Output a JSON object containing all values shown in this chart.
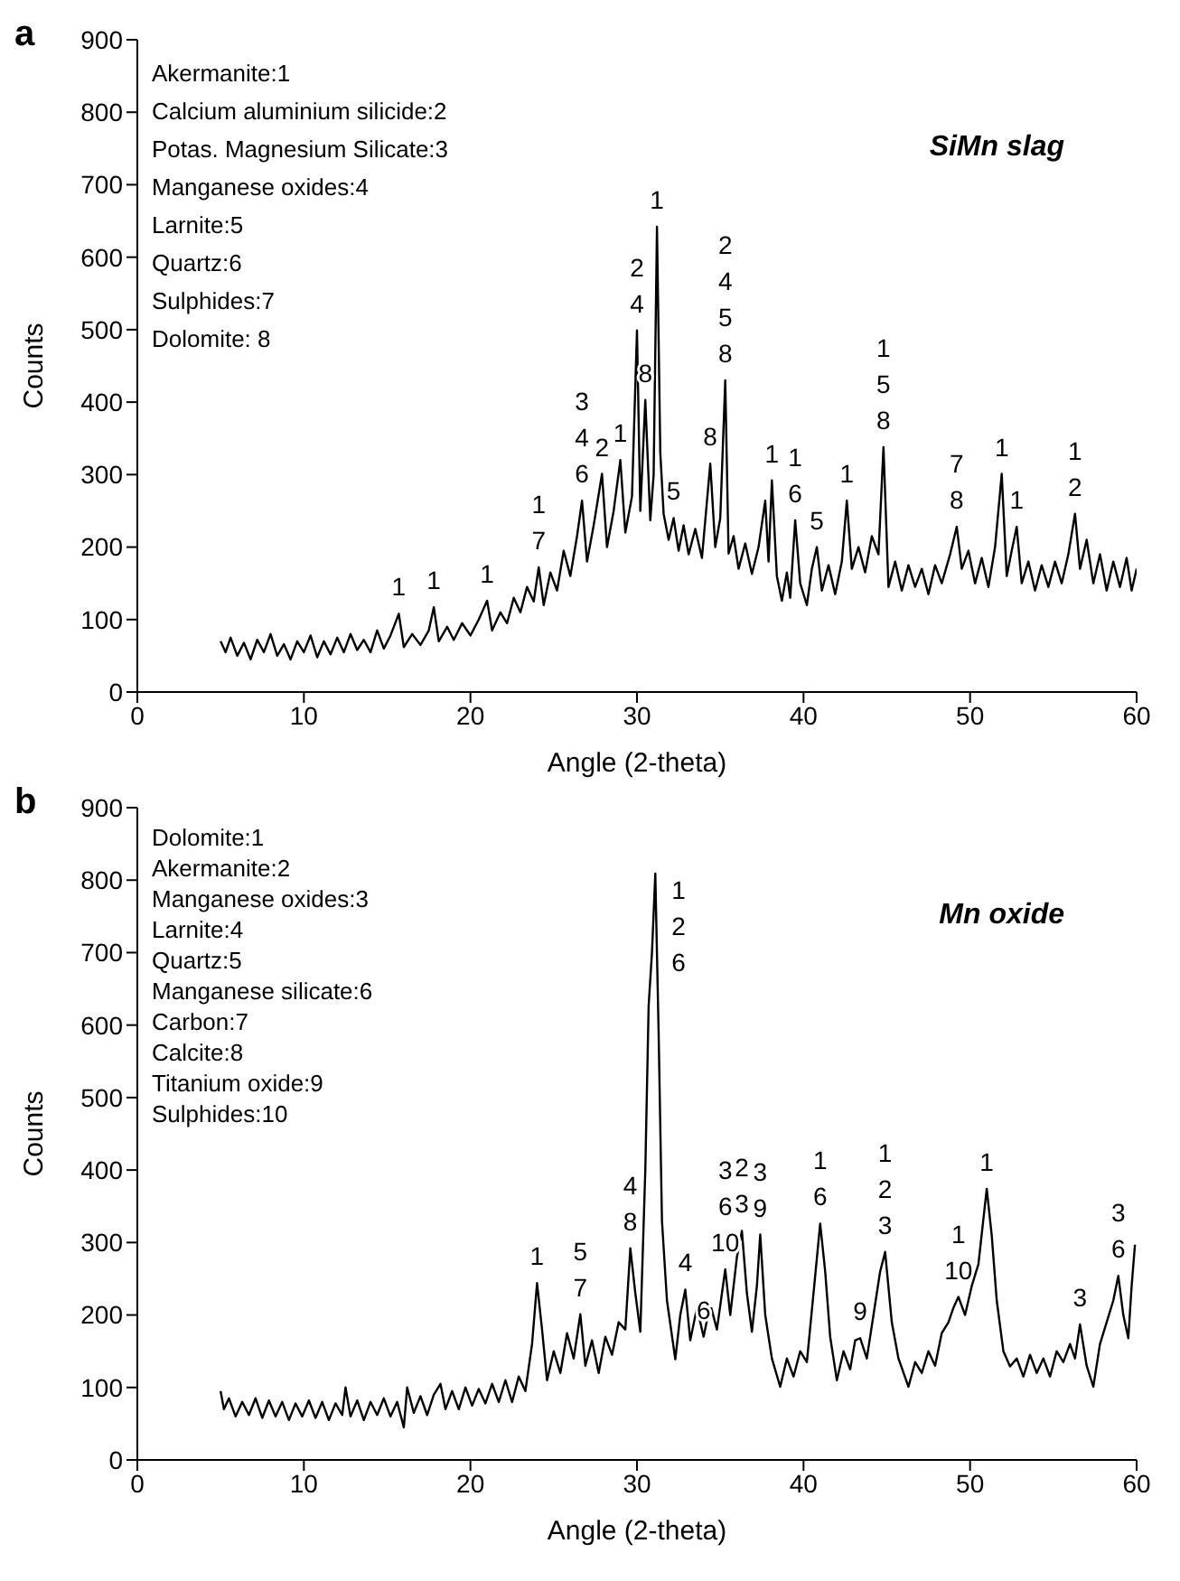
{
  "chart_data": [
    {
      "type": "line",
      "title": "a",
      "subtitle": "SiMn slag",
      "xlabel": "Angle (2-theta)",
      "ylabel": "Counts",
      "xlim": [
        0,
        60
      ],
      "xticks": [
        0,
        10,
        20,
        30,
        40,
        50,
        60
      ],
      "ylim": [
        0,
        900
      ],
      "yticks": [
        0,
        100,
        200,
        300,
        400,
        500,
        600,
        700,
        800,
        900
      ],
      "annotations": [
        "Akermanite:1",
        "Calcium aluminium silicide:2",
        "Potas. Magnesium Silicate:3",
        "Manganese oxides:4",
        "Larnite:5",
        "Quartz:6",
        "Sulphides:7",
        "Dolomite: 8",
        {
          "text": "1",
          "x": 15.7,
          "y": 108
        },
        {
          "text": "1",
          "x": 17.8,
          "y": 117
        },
        {
          "text": "1",
          "x": 21,
          "y": 126
        },
        {
          "text": "1\n7",
          "x": 24.1,
          "y": 172
        },
        {
          "text": "3\n4\n6",
          "x": 26.7,
          "y": 264
        },
        {
          "text": "2",
          "x": 27.9,
          "y": 301
        },
        {
          "text": "1",
          "x": 29,
          "y": 320
        },
        {
          "text": "2\n4",
          "x": 30,
          "y": 499
        },
        {
          "text": "8",
          "x": 30.5,
          "y": 403
        },
        {
          "text": "1",
          "x": 31.2,
          "y": 642
        },
        {
          "text": "5",
          "x": 32.2,
          "y": 240
        },
        {
          "text": "8",
          "x": 34.4,
          "y": 315
        },
        {
          "text": "2\n4\n5\n8",
          "x": 35.3,
          "y": 430
        },
        {
          "text": "1",
          "x": 38.1,
          "y": 292
        },
        {
          "text": "1\n6",
          "x": 39.5,
          "y": 237
        },
        {
          "text": "5",
          "x": 40.8,
          "y": 200
        },
        {
          "text": "1",
          "x": 42.6,
          "y": 264
        },
        {
          "text": "1\n5\n8",
          "x": 44.8,
          "y": 338
        },
        {
          "text": "7\n8",
          "x": 49.2,
          "y": 228
        },
        {
          "text": "1",
          "x": 51.9,
          "y": 301
        },
        {
          "text": "1",
          "x": 52.8,
          "y": 228
        },
        {
          "text": "1\n2",
          "x": 56.3,
          "y": 246
        }
      ],
      "series": [
        {
          "color": "#000000",
          "x": [
            5,
            5.3,
            5.6,
            6,
            6.4,
            6.8,
            7.2,
            7.6,
            8,
            8.4,
            8.8,
            9.2,
            9.6,
            10,
            10.4,
            10.8,
            11.2,
            11.6,
            12,
            12.4,
            12.8,
            13.2,
            13.6,
            14,
            14.4,
            14.8,
            15.2,
            15.7,
            16,
            16.5,
            17,
            17.5,
            17.8,
            18.1,
            18.6,
            19,
            19.5,
            20,
            20.5,
            21,
            21.3,
            21.8,
            22.2,
            22.6,
            23,
            23.4,
            23.8,
            24.1,
            24.4,
            24.8,
            25.2,
            25.6,
            26,
            26.4,
            26.7,
            27,
            27.4,
            27.9,
            28.2,
            28.6,
            29,
            29.3,
            29.7,
            30,
            30.2,
            30.5,
            30.8,
            31,
            31.2,
            31.4,
            31.6,
            31.9,
            32.2,
            32.5,
            32.8,
            33.1,
            33.5,
            33.9,
            34.4,
            34.7,
            35,
            35.3,
            35.5,
            35.8,
            36.1,
            36.5,
            36.9,
            37.3,
            37.7,
            37.9,
            38.1,
            38.4,
            38.7,
            39,
            39.2,
            39.5,
            39.8,
            40.2,
            40.5,
            40.8,
            41.1,
            41.5,
            41.9,
            42.3,
            42.6,
            42.9,
            43.3,
            43.7,
            44.1,
            44.5,
            44.8,
            45.1,
            45.5,
            45.9,
            46.3,
            46.7,
            47.1,
            47.5,
            47.9,
            48.3,
            48.8,
            49.2,
            49.5,
            49.9,
            50.3,
            50.7,
            51.1,
            51.5,
            51.9,
            52.2,
            52.5,
            52.8,
            53.1,
            53.5,
            53.9,
            54.3,
            54.7,
            55.1,
            55.5,
            55.9,
            56.3,
            56.6,
            57,
            57.4,
            57.8,
            58.2,
            58.6,
            59,
            59.4,
            59.7,
            60
          ],
          "values": [
            70,
            55,
            75,
            50,
            68,
            45,
            72,
            55,
            80,
            50,
            66,
            45,
            70,
            55,
            78,
            48,
            70,
            52,
            75,
            55,
            80,
            58,
            72,
            55,
            85,
            60,
            78,
            108,
            62,
            80,
            65,
            85,
            117,
            70,
            90,
            72,
            95,
            78,
            100,
            126,
            85,
            110,
            95,
            130,
            110,
            145,
            125,
            172,
            120,
            165,
            140,
            195,
            160,
            215,
            264,
            180,
            230,
            301,
            200,
            250,
            320,
            220,
            270,
            499,
            250,
            403,
            237,
            300,
            642,
            330,
            246,
            210,
            240,
            195,
            230,
            190,
            225,
            185,
            315,
            200,
            240,
            430,
            191,
            215,
            170,
            205,
            163,
            200,
            264,
            180,
            292,
            160,
            126,
            165,
            130,
            237,
            150,
            120,
            170,
            200,
            140,
            175,
            135,
            180,
            264,
            170,
            200,
            165,
            215,
            190,
            338,
            145,
            180,
            140,
            175,
            145,
            170,
            135,
            175,
            150,
            190,
            228,
            170,
            195,
            150,
            185,
            145,
            200,
            301,
            160,
            195,
            228,
            150,
            180,
            140,
            175,
            145,
            180,
            150,
            190,
            246,
            170,
            210,
            150,
            190,
            140,
            180,
            145,
            185,
            140,
            170
          ]
        }
      ]
    },
    {
      "type": "line",
      "title": "b",
      "subtitle": "Mn oxide",
      "xlabel": "Angle (2-theta)",
      "ylabel": "Counts",
      "xlim": [
        0,
        60
      ],
      "xticks": [
        0,
        10,
        20,
        30,
        40,
        50,
        60
      ],
      "ylim": [
        0,
        900
      ],
      "yticks": [
        0,
        100,
        200,
        300,
        400,
        500,
        600,
        700,
        800,
        900
      ],
      "annotations": [
        "Dolomite:1",
        "Akermanite:2",
        "Manganese oxides:3",
        "Larnite:4",
        "Quartz:5",
        "Manganese silicate:6",
        "Carbon:7",
        "Calcite:8",
        "Titanium oxide:9",
        "Sulphides:10",
        {
          "text": "1",
          "x": 24,
          "y": 244
        },
        {
          "text": "5\n7",
          "x": 26.6,
          "y": 201
        },
        {
          "text": "4\n8",
          "x": 29.6,
          "y": 292
        },
        {
          "text": "1\n2\n6",
          "x": 31.1,
          "y": 809
        },
        {
          "text": "4",
          "x": 32.9,
          "y": 235
        },
        {
          "text": "6",
          "x": 34,
          "y": 170
        },
        {
          "text": "3\n6\n10",
          "x": 35.3,
          "y": 263
        },
        {
          "text": "2\n3",
          "x": 36.3,
          "y": 316
        },
        {
          "text": "3\n9",
          "x": 37.4,
          "y": 311
        },
        {
          "text": "1\n6",
          "x": 41,
          "y": 326
        },
        {
          "text": "9",
          "x": 43.4,
          "y": 168
        },
        {
          "text": "1\n2\n3",
          "x": 44.9,
          "y": 287
        },
        {
          "text": "1\n10",
          "x": 49.3,
          "y": 225
        },
        {
          "text": "1",
          "x": 51,
          "y": 374
        },
        {
          "text": "3",
          "x": 56.6,
          "y": 187
        },
        {
          "text": "3\n6",
          "x": 58.9,
          "y": 254
        }
      ],
      "series": [
        {
          "color": "#000000",
          "x": [
            5,
            5.2,
            5.5,
            5.9,
            6.3,
            6.7,
            7.1,
            7.5,
            7.9,
            8.3,
            8.7,
            9.1,
            9.5,
            9.9,
            10.3,
            10.7,
            11.1,
            11.5,
            11.9,
            12.3,
            12.5,
            12.8,
            13.2,
            13.6,
            14,
            14.4,
            14.8,
            15.2,
            15.6,
            16,
            16.2,
            16.6,
            17,
            17.4,
            17.8,
            18.2,
            18.5,
            18.9,
            19.3,
            19.7,
            20.1,
            20.5,
            20.9,
            21.3,
            21.7,
            22.1,
            22.5,
            22.9,
            23.3,
            23.7,
            24,
            24.3,
            24.6,
            25,
            25.4,
            25.8,
            26.2,
            26.6,
            26.9,
            27.3,
            27.7,
            28.1,
            28.5,
            28.9,
            29.3,
            29.6,
            29.9,
            30.2,
            30.5,
            30.7,
            30.9,
            31.1,
            31.3,
            31.5,
            31.8,
            32.3,
            32.6,
            32.9,
            33.2,
            33.6,
            34,
            34.4,
            34.8,
            35.3,
            35.6,
            36,
            36.3,
            36.6,
            36.9,
            37.2,
            37.4,
            37.7,
            38.1,
            38.6,
            39,
            39.4,
            39.8,
            40.2,
            40.6,
            41,
            41.3,
            41.6,
            42,
            42.4,
            42.8,
            43.1,
            43.4,
            43.8,
            44.2,
            44.6,
            44.9,
            45.3,
            45.7,
            46.3,
            46.7,
            47.1,
            47.5,
            47.9,
            48.3,
            48.7,
            49,
            49.3,
            49.7,
            50.1,
            50.5,
            51,
            51.3,
            51.6,
            52,
            52.4,
            52.8,
            53.2,
            53.6,
            54,
            54.4,
            54.8,
            55.2,
            55.6,
            56,
            56.3,
            56.6,
            57,
            57.4,
            57.8,
            58.2,
            58.6,
            58.9,
            59.2,
            59.5,
            59.7,
            59.9
          ],
          "values": [
            95,
            70,
            85,
            60,
            80,
            62,
            85,
            58,
            82,
            60,
            80,
            55,
            78,
            60,
            82,
            58,
            80,
            55,
            78,
            62,
            100,
            60,
            82,
            55,
            80,
            62,
            85,
            60,
            80,
            45,
            100,
            65,
            88,
            62,
            90,
            105,
            70,
            95,
            70,
            100,
            75,
            98,
            78,
            105,
            80,
            110,
            80,
            115,
            95,
            160,
            244,
            180,
            110,
            150,
            120,
            175,
            140,
            201,
            130,
            165,
            120,
            170,
            145,
            190,
            180,
            292,
            230,
            177,
            400,
            627,
            700,
            809,
            589,
            330,
            220,
            139,
            200,
            235,
            165,
            210,
            170,
            215,
            180,
            263,
            200,
            280,
            316,
            230,
            177,
            240,
            311,
            200,
            140,
            101,
            140,
            115,
            150,
            135,
            230,
            326,
            260,
            170,
            110,
            150,
            125,
            165,
            168,
            140,
            200,
            260,
            287,
            190,
            140,
            101,
            135,
            120,
            150,
            130,
            175,
            190,
            210,
            225,
            200,
            240,
            270,
            374,
            310,
            220,
            150,
            129,
            140,
            115,
            145,
            120,
            140,
            115,
            150,
            135,
            160,
            140,
            187,
            130,
            101,
            160,
            190,
            220,
            254,
            200,
            168,
            240,
            297
          ]
        }
      ]
    }
  ]
}
